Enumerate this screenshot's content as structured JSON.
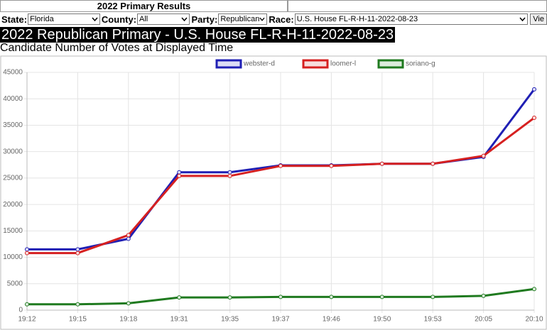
{
  "header": {
    "title": "2022 Primary Results"
  },
  "controls": {
    "state_label": "State:",
    "state": "Florida",
    "county_label": "County:",
    "county": "All",
    "party_label": "Party:",
    "party": "Republican",
    "race_label": "Race:",
    "race": "U.S. House FL-R-H-11-2022-08-23",
    "button": "Vie"
  },
  "banner": "2022 Republican Primary - U.S. House FL-R-H-11-2022-08-23",
  "chart_data": {
    "type": "line",
    "title": "Candidate Number of Votes at Displayed Time",
    "categories": [
      "19:12",
      "19:15",
      "19:18",
      "19:31",
      "19:35",
      "19:37",
      "19:46",
      "19:50",
      "19:53",
      "20:05",
      "20:10"
    ],
    "series": [
      {
        "name": "webster-d",
        "color": "#1f1fb4",
        "fill": "#dcdcf5",
        "values": [
          11500,
          11500,
          13500,
          26100,
          26100,
          27400,
          27400,
          27700,
          27700,
          29000,
          41800
        ]
      },
      {
        "name": "loomer-l",
        "color": "#d62020",
        "fill": "#f7dede",
        "values": [
          10800,
          10800,
          14200,
          25400,
          25400,
          27300,
          27300,
          27700,
          27700,
          29200,
          36400
        ]
      },
      {
        "name": "soriano-g",
        "color": "#1f7a1f",
        "fill": "#dcecdc",
        "values": [
          1100,
          1100,
          1300,
          2400,
          2400,
          2500,
          2500,
          2500,
          2500,
          2700,
          4000
        ]
      }
    ],
    "ylim": [
      0,
      45000
    ],
    "yticks": [
      0,
      5000,
      10000,
      15000,
      20000,
      25000,
      30000,
      35000,
      40000,
      45000
    ],
    "grid": true,
    "legend": "top"
  }
}
